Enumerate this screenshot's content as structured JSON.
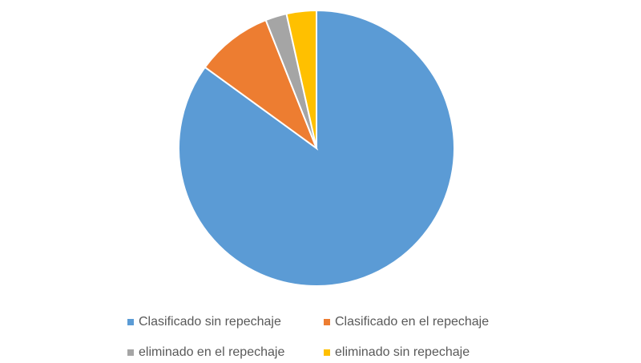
{
  "chart_data": {
    "type": "pie",
    "categories": [
      "Clasificado sin repechaje",
      "Clasificado en el repechaje",
      "eliminado en el repechaje",
      "eliminado sin repechaje"
    ],
    "values": [
      85,
      9,
      2.5,
      3.5
    ],
    "colors": [
      "#5b9bd5",
      "#ed7d31",
      "#a5a5a5",
      "#ffc000"
    ],
    "legend": "bottom"
  }
}
